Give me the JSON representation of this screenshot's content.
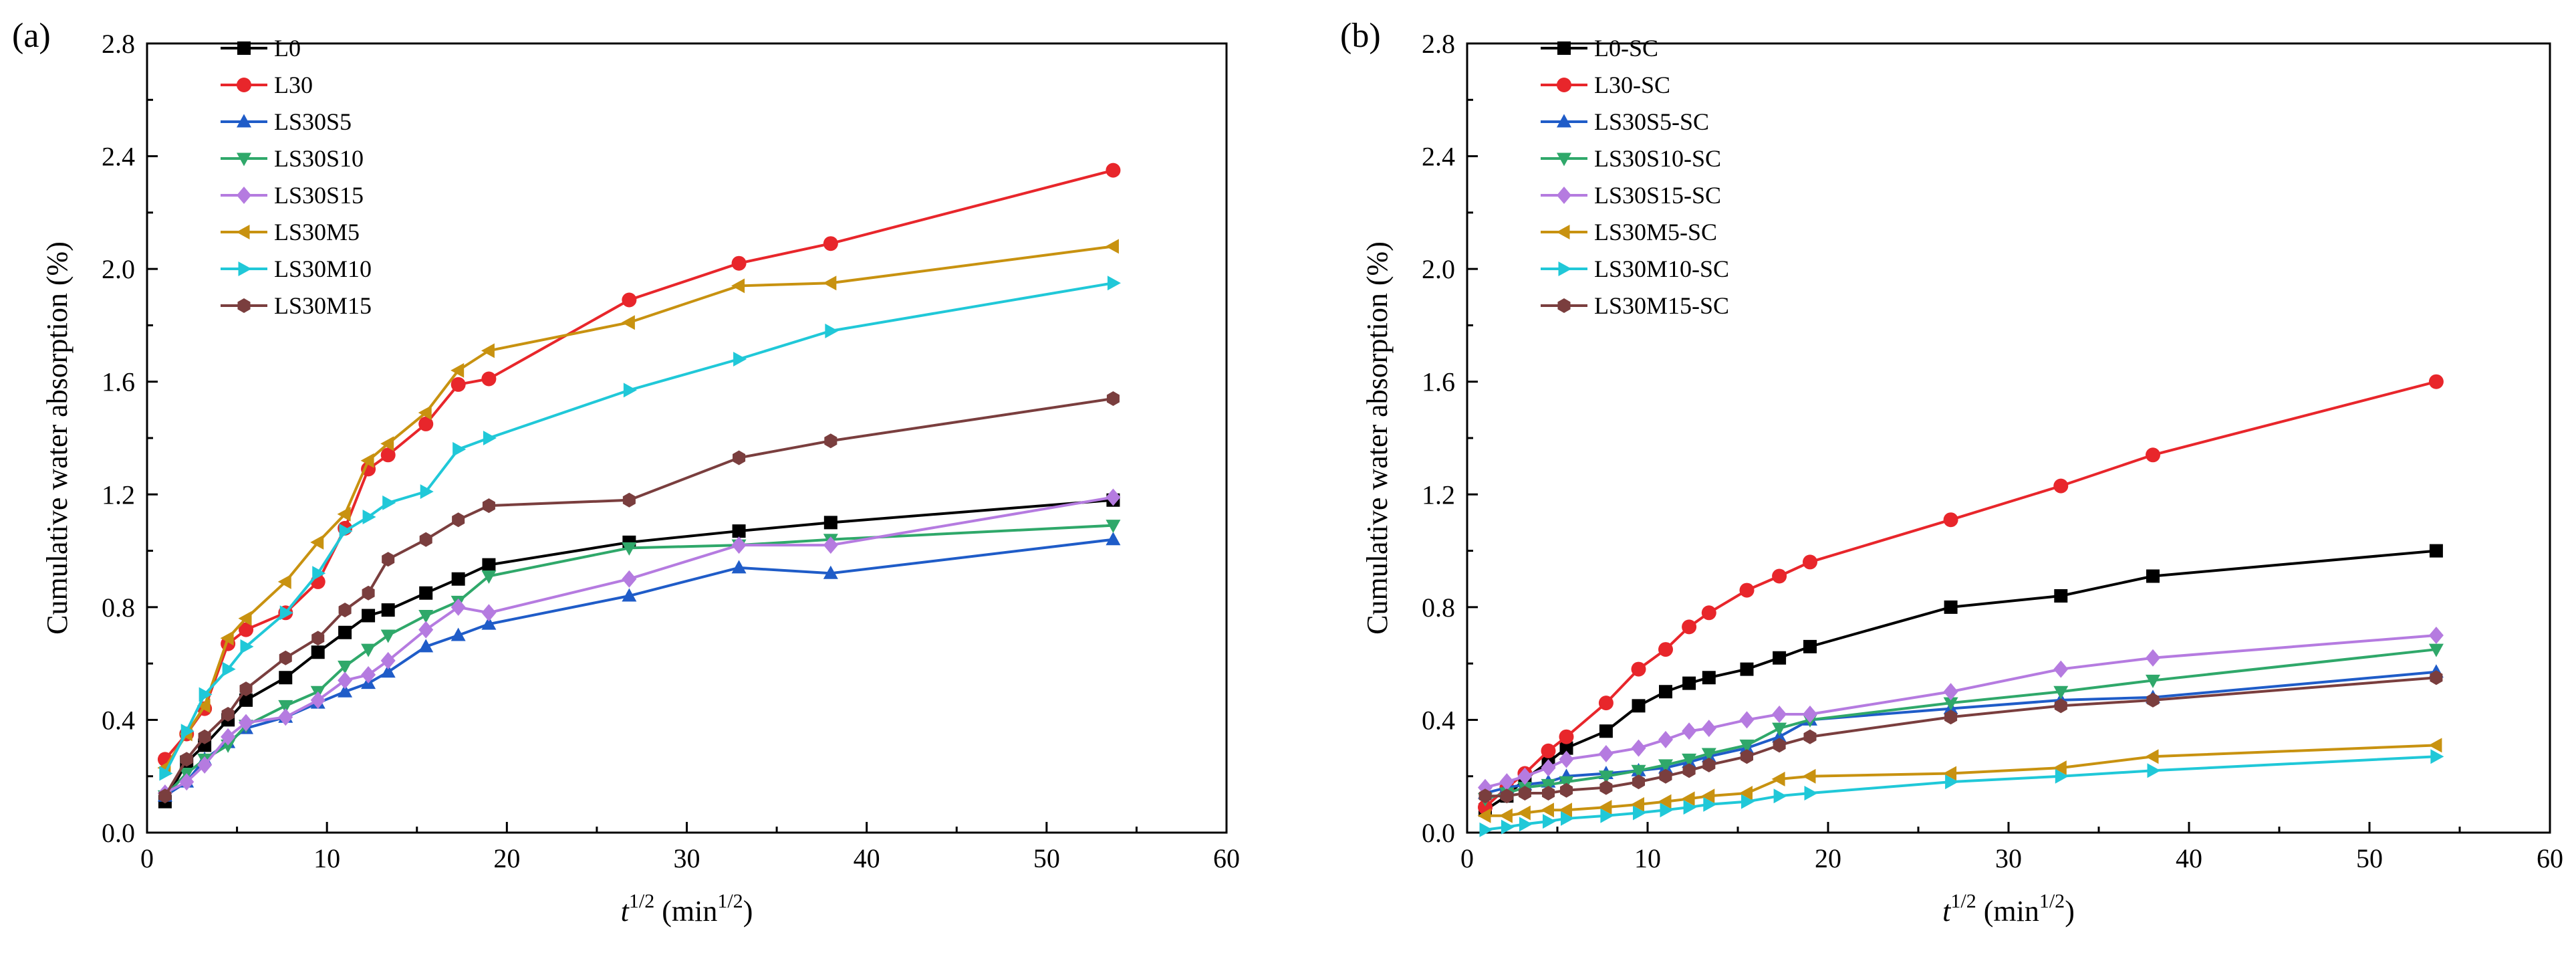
{
  "chart_data": [
    {
      "type": "line",
      "panel_label": "(a)",
      "xlabel": {
        "base": "t",
        "sup": "1/2",
        "unit_pre": " (min",
        "unit_sup": "1/2",
        "unit_post": ")"
      },
      "ylabel": "Cumulative water absorption (%)",
      "xlim": [
        0,
        60
      ],
      "ylim": [
        0,
        2.8
      ],
      "xticks": [
        0,
        10,
        20,
        30,
        40,
        50,
        60
      ],
      "yticks": [
        "0.0",
        "0.4",
        "0.8",
        "1.2",
        "1.6",
        "2.0",
        "2.4",
        "2.8"
      ],
      "legend_position": "top-left",
      "series": [
        {
          "name": "L0",
          "color": "#000000",
          "marker": "square",
          "x": [
            1.0,
            2.2,
            3.2,
            4.5,
            5.5,
            7.7,
            9.5,
            11.0,
            12.3,
            13.4,
            15.5,
            17.3,
            19.0,
            26.8,
            32.9,
            38.0,
            53.7
          ],
          "y": [
            0.11,
            0.25,
            0.31,
            0.4,
            0.47,
            0.55,
            0.64,
            0.71,
            0.77,
            0.79,
            0.85,
            0.9,
            0.95,
            1.03,
            1.07,
            1.1,
            1.18
          ]
        },
        {
          "name": "L30",
          "color": "#e8262b",
          "marker": "circle",
          "x": [
            1.0,
            2.2,
            3.2,
            4.5,
            5.5,
            7.7,
            9.5,
            11.0,
            12.3,
            13.4,
            15.5,
            17.3,
            19.0,
            26.8,
            32.9,
            38.0,
            53.7
          ],
          "y": [
            0.26,
            0.35,
            0.44,
            0.67,
            0.72,
            0.78,
            0.89,
            1.08,
            1.29,
            1.34,
            1.45,
            1.59,
            1.61,
            1.89,
            2.02,
            2.09,
            2.35
          ]
        },
        {
          "name": "LS30S5",
          "color": "#1f5cc8",
          "marker": "triangle-up",
          "x": [
            1.0,
            2.2,
            3.2,
            4.5,
            5.5,
            7.7,
            9.5,
            11.0,
            12.3,
            13.4,
            15.5,
            17.3,
            19.0,
            26.8,
            32.9,
            38.0,
            53.7
          ],
          "y": [
            0.13,
            0.18,
            0.26,
            0.32,
            0.37,
            0.41,
            0.46,
            0.5,
            0.53,
            0.57,
            0.66,
            0.7,
            0.74,
            0.84,
            0.94,
            0.92,
            1.04
          ]
        },
        {
          "name": "LS30S10",
          "color": "#2fa86a",
          "marker": "triangle-down",
          "x": [
            1.0,
            2.2,
            3.2,
            4.5,
            5.5,
            7.7,
            9.5,
            11.0,
            12.3,
            13.4,
            15.5,
            17.3,
            19.0,
            26.8,
            32.9,
            38.0,
            53.7
          ],
          "y": [
            0.13,
            0.21,
            0.26,
            0.31,
            0.38,
            0.45,
            0.5,
            0.59,
            0.65,
            0.7,
            0.77,
            0.82,
            0.91,
            1.01,
            1.02,
            1.04,
            1.09
          ]
        },
        {
          "name": "LS30S15",
          "color": "#b57be0",
          "marker": "diamond",
          "x": [
            1.0,
            2.2,
            3.2,
            4.5,
            5.5,
            7.7,
            9.5,
            11.0,
            12.3,
            13.4,
            15.5,
            17.3,
            19.0,
            26.8,
            32.9,
            38.0,
            53.7
          ],
          "y": [
            0.14,
            0.18,
            0.24,
            0.34,
            0.39,
            0.41,
            0.47,
            0.54,
            0.56,
            0.61,
            0.72,
            0.8,
            0.78,
            0.9,
            1.02,
            1.02,
            1.19
          ]
        },
        {
          "name": "LS30M5",
          "color": "#c89210",
          "marker": "triangle-left",
          "x": [
            1.0,
            2.2,
            3.2,
            4.5,
            5.5,
            7.7,
            9.5,
            11.0,
            12.3,
            13.4,
            15.5,
            17.3,
            19.0,
            26.8,
            32.9,
            38.0,
            53.7
          ],
          "y": [
            0.23,
            0.35,
            0.45,
            0.69,
            0.76,
            0.89,
            1.03,
            1.13,
            1.32,
            1.38,
            1.49,
            1.64,
            1.71,
            1.81,
            1.94,
            1.95,
            2.08
          ]
        },
        {
          "name": "LS30M10",
          "color": "#20c8d8",
          "marker": "triangle-right",
          "x": [
            1.0,
            2.2,
            3.2,
            4.5,
            5.5,
            7.7,
            9.5,
            11.0,
            12.3,
            13.4,
            15.5,
            17.3,
            19.0,
            26.8,
            32.9,
            38.0,
            53.7
          ],
          "y": [
            0.21,
            0.36,
            0.49,
            0.58,
            0.66,
            0.78,
            0.92,
            1.07,
            1.12,
            1.17,
            1.21,
            1.36,
            1.4,
            1.57,
            1.68,
            1.78,
            1.95
          ]
        },
        {
          "name": "LS30M15",
          "color": "#7a3e3e",
          "marker": "hexagon",
          "x": [
            1.0,
            2.2,
            3.2,
            4.5,
            5.5,
            7.7,
            9.5,
            11.0,
            12.3,
            13.4,
            15.5,
            17.3,
            19.0,
            26.8,
            32.9,
            38.0,
            53.7
          ],
          "y": [
            0.13,
            0.26,
            0.34,
            0.42,
            0.51,
            0.62,
            0.69,
            0.79,
            0.85,
            0.97,
            1.04,
            1.11,
            1.16,
            1.18,
            1.33,
            1.39,
            1.54
          ]
        }
      ]
    },
    {
      "type": "line",
      "panel_label": "(b)",
      "xlabel": {
        "base": "t",
        "sup": "1/2",
        "unit_pre": " (min",
        "unit_sup": "1/2",
        "unit_post": ")"
      },
      "ylabel": "Cumulative water absorption (%)",
      "xlim": [
        0,
        60
      ],
      "ylim": [
        0,
        2.8
      ],
      "xticks": [
        0,
        10,
        20,
        30,
        40,
        50,
        60
      ],
      "yticks": [
        "0.0",
        "0.4",
        "0.8",
        "1.2",
        "1.6",
        "2.0",
        "2.4",
        "2.8"
      ],
      "legend_position": "top-left",
      "series": [
        {
          "name": "L0-SC",
          "color": "#000000",
          "marker": "square",
          "x": [
            1.0,
            2.2,
            3.2,
            4.5,
            5.5,
            7.7,
            9.5,
            11.0,
            12.3,
            13.4,
            15.5,
            17.3,
            19.0,
            26.8,
            32.9,
            38.0,
            53.7
          ],
          "y": [
            0.08,
            0.13,
            0.19,
            0.25,
            0.3,
            0.36,
            0.45,
            0.5,
            0.53,
            0.55,
            0.58,
            0.62,
            0.66,
            0.8,
            0.84,
            0.91,
            1.0
          ]
        },
        {
          "name": "L30-SC",
          "color": "#e8262b",
          "marker": "circle",
          "x": [
            1.0,
            2.2,
            3.2,
            4.5,
            5.5,
            7.7,
            9.5,
            11.0,
            12.3,
            13.4,
            15.5,
            17.3,
            19.0,
            26.8,
            32.9,
            38.0,
            53.7
          ],
          "y": [
            0.09,
            0.16,
            0.21,
            0.29,
            0.34,
            0.46,
            0.58,
            0.65,
            0.73,
            0.78,
            0.86,
            0.91,
            0.96,
            1.11,
            1.23,
            1.34,
            1.6
          ]
        },
        {
          "name": "LS30S5-SC",
          "color": "#1f5cc8",
          "marker": "triangle-up",
          "x": [
            1.0,
            2.2,
            3.2,
            4.5,
            5.5,
            7.7,
            9.5,
            11.0,
            12.3,
            13.4,
            15.5,
            17.3,
            19.0,
            26.8,
            32.9,
            38.0,
            53.7
          ],
          "y": [
            0.14,
            0.16,
            0.17,
            0.18,
            0.2,
            0.21,
            0.22,
            0.23,
            0.25,
            0.27,
            0.3,
            0.34,
            0.4,
            0.44,
            0.47,
            0.48,
            0.57
          ]
        },
        {
          "name": "LS30S10-SC",
          "color": "#2fa86a",
          "marker": "triangle-down",
          "x": [
            1.0,
            2.2,
            3.2,
            4.5,
            5.5,
            7.7,
            9.5,
            11.0,
            12.3,
            13.4,
            15.5,
            17.3,
            19.0,
            26.8,
            32.9,
            38.0,
            53.7
          ],
          "y": [
            0.12,
            0.14,
            0.16,
            0.17,
            0.18,
            0.2,
            0.22,
            0.24,
            0.26,
            0.28,
            0.31,
            0.37,
            0.4,
            0.46,
            0.5,
            0.54,
            0.65
          ]
        },
        {
          "name": "LS30S15-SC",
          "color": "#b57be0",
          "marker": "diamond",
          "x": [
            1.0,
            2.2,
            3.2,
            4.5,
            5.5,
            7.7,
            9.5,
            11.0,
            12.3,
            13.4,
            15.5,
            17.3,
            19.0,
            26.8,
            32.9,
            38.0,
            53.7
          ],
          "y": [
            0.16,
            0.18,
            0.2,
            0.23,
            0.26,
            0.28,
            0.3,
            0.33,
            0.36,
            0.37,
            0.4,
            0.42,
            0.42,
            0.5,
            0.58,
            0.62,
            0.7
          ]
        },
        {
          "name": "LS30M5-SC",
          "color": "#c89210",
          "marker": "triangle-left",
          "x": [
            1.0,
            2.2,
            3.2,
            4.5,
            5.5,
            7.7,
            9.5,
            11.0,
            12.3,
            13.4,
            15.5,
            17.3,
            19.0,
            26.8,
            32.9,
            38.0,
            53.7
          ],
          "y": [
            0.06,
            0.06,
            0.07,
            0.08,
            0.08,
            0.09,
            0.1,
            0.11,
            0.12,
            0.13,
            0.14,
            0.19,
            0.2,
            0.21,
            0.23,
            0.27,
            0.31
          ]
        },
        {
          "name": "LS30M10-SC",
          "color": "#20c8d8",
          "marker": "triangle-right",
          "x": [
            1.0,
            2.2,
            3.2,
            4.5,
            5.5,
            7.7,
            9.5,
            11.0,
            12.3,
            13.4,
            15.5,
            17.3,
            19.0,
            26.8,
            32.9,
            38.0,
            53.7
          ],
          "y": [
            0.01,
            0.02,
            0.03,
            0.04,
            0.05,
            0.06,
            0.07,
            0.08,
            0.09,
            0.1,
            0.11,
            0.13,
            0.14,
            0.18,
            0.2,
            0.22,
            0.27
          ]
        },
        {
          "name": "LS30M15-SC",
          "color": "#7a3e3e",
          "marker": "hexagon",
          "x": [
            1.0,
            2.2,
            3.2,
            4.5,
            5.5,
            7.7,
            9.5,
            11.0,
            12.3,
            13.4,
            15.5,
            17.3,
            19.0,
            26.8,
            32.9,
            38.0,
            53.7
          ],
          "y": [
            0.13,
            0.13,
            0.14,
            0.14,
            0.15,
            0.16,
            0.18,
            0.2,
            0.22,
            0.24,
            0.27,
            0.31,
            0.34,
            0.41,
            0.45,
            0.47,
            0.55
          ]
        }
      ]
    }
  ]
}
